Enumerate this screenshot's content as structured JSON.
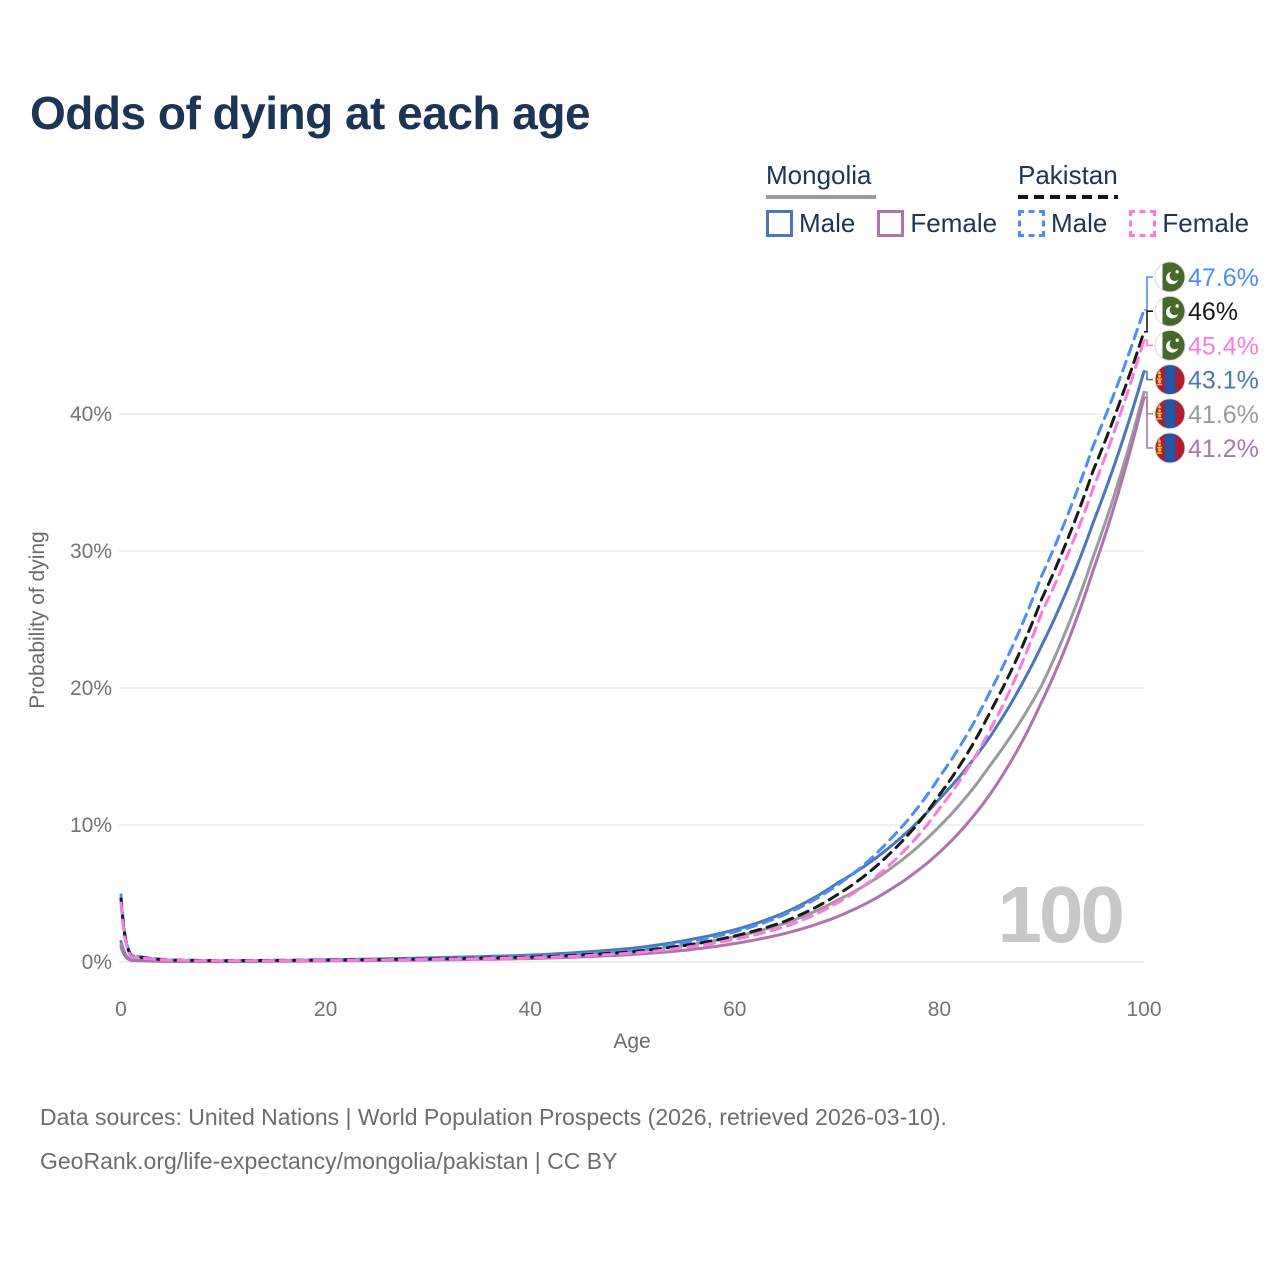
{
  "title": "Odds of dying at each age",
  "watermark": "100",
  "legend": {
    "groups": [
      {
        "label": "Mongolia",
        "line_style": "solid",
        "items": [
          {
            "label": "Male",
            "color": "#4a79b5"
          },
          {
            "label": "Female",
            "color": "#ad74ad"
          }
        ]
      },
      {
        "label": "Pakistan",
        "line_style": "dashed",
        "items": [
          {
            "label": "Male",
            "color": "#4d8df5"
          },
          {
            "label": "Female",
            "color": "#fb7ae0"
          }
        ]
      }
    ]
  },
  "footer": {
    "line1": "Data sources: United Nations | World Population Prospects (2026, retrieved 2026-03-10).",
    "line2": "GeoRank.org/life-expectancy/mongolia/pakistan | CC BY"
  },
  "chart_data": {
    "type": "line",
    "title": "Odds of dying at each age",
    "xlabel": "Age",
    "ylabel": "Probability of dying",
    "xlim": [
      0,
      100
    ],
    "ylim": [
      0,
      48
    ],
    "x_ticks": [
      0,
      20,
      40,
      60,
      80,
      100
    ],
    "y_tick_values": [
      0,
      10,
      20,
      30,
      40
    ],
    "y_tick_labels": [
      "0%",
      "10%",
      "20%",
      "30%",
      "40%"
    ],
    "grid": "horizontal-only",
    "legend_position": "top-right",
    "ages": [
      0,
      1,
      5,
      10,
      20,
      30,
      40,
      50,
      55,
      60,
      65,
      70,
      75,
      80,
      85,
      90,
      95,
      100
    ],
    "series": [
      {
        "name": "Pakistan Male",
        "country": "Pakistan",
        "sex": "Male",
        "flag": "pakistan",
        "color": "#4d8df5",
        "dash": true,
        "end_label": "47.6%",
        "end_value": 47.6,
        "values": [
          4.9,
          0.5,
          0.15,
          0.1,
          0.16,
          0.25,
          0.4,
          0.85,
          1.4,
          2.2,
          3.5,
          5.6,
          8.8,
          13.5,
          19.8,
          28.2,
          37.6,
          47.6
        ]
      },
      {
        "name": "Pakistan Both sexes",
        "country": "Pakistan",
        "sex": "Both",
        "flag": "pakistan",
        "color": "#191919",
        "dash": true,
        "end_label": "46%",
        "end_value": 46.0,
        "values": [
          4.6,
          0.45,
          0.13,
          0.09,
          0.14,
          0.22,
          0.35,
          0.75,
          1.2,
          1.9,
          3.0,
          4.9,
          7.8,
          12.2,
          18.3,
          26.5,
          35.8,
          46.0
        ]
      },
      {
        "name": "Pakistan Female",
        "country": "Pakistan",
        "sex": "Female",
        "flag": "pakistan",
        "color": "#fb7ae0",
        "dash": true,
        "end_label": "45.4%",
        "end_value": 45.4,
        "values": [
          4.3,
          0.4,
          0.12,
          0.08,
          0.12,
          0.19,
          0.3,
          0.65,
          1.05,
          1.65,
          2.6,
          4.3,
          7.0,
          11.2,
          17.0,
          25.5,
          34.5,
          45.4
        ]
      },
      {
        "name": "Mongolia Male",
        "country": "Mongolia",
        "sex": "Male",
        "flag": "mongolia",
        "color": "#4a79b5",
        "dash": false,
        "end_label": "43.1%",
        "end_value": 43.1,
        "values": [
          1.5,
          0.15,
          0.06,
          0.05,
          0.16,
          0.3,
          0.5,
          1.0,
          1.55,
          2.35,
          3.65,
          5.75,
          8.3,
          11.9,
          16.5,
          23.1,
          32.0,
          43.1
        ]
      },
      {
        "name": "Mongolia Both sexes",
        "country": "Mongolia",
        "sex": "Both",
        "flag": "mongolia",
        "color": "#9b9b9b",
        "dash": false,
        "end_label": "41.6%",
        "end_value": 41.6,
        "values": [
          1.3,
          0.13,
          0.05,
          0.04,
          0.12,
          0.22,
          0.38,
          0.78,
          1.2,
          1.85,
          2.85,
          4.5,
          6.7,
          9.9,
          14.4,
          20.2,
          29.5,
          41.6
        ]
      },
      {
        "name": "Mongolia Female",
        "country": "Mongolia",
        "sex": "Female",
        "flag": "mongolia",
        "color": "#ad74ad",
        "dash": false,
        "end_label": "41.2%",
        "end_value": 41.2,
        "values": [
          1.1,
          0.11,
          0.04,
          0.03,
          0.08,
          0.15,
          0.25,
          0.55,
          0.85,
          1.35,
          2.1,
          3.3,
          5.2,
          8.0,
          12.3,
          19.0,
          28.5,
          41.2
        ]
      }
    ],
    "flag_colors": {
      "pakistan_green": "#47682c",
      "pakistan_white": "#ffffff",
      "mongolia_red": "#b01c30",
      "mongolia_blue": "#2456a5",
      "mongolia_yellow": "#f0c030"
    }
  }
}
